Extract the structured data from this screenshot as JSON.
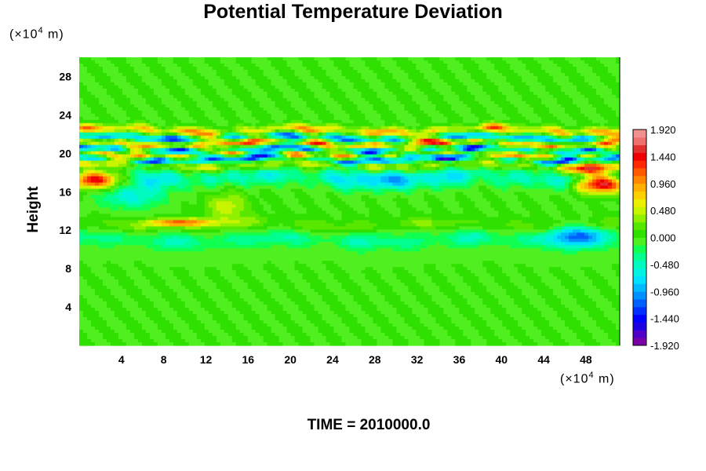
{
  "chart_data": {
    "type": "heatmap",
    "title": "Potential Temperature Deviation",
    "ylabel": "Height",
    "x_unit": [
      "(×10",
      "4",
      " m)"
    ],
    "y_unit": [
      "(×10",
      "4",
      " m)"
    ],
    "footer": "TIME = 2010000.0",
    "xlim": [
      0,
      51.2
    ],
    "ylim": [
      0,
      30
    ],
    "x_ticks": [
      "4",
      "8",
      "12",
      "16",
      "20",
      "24",
      "28",
      "32",
      "36",
      "40",
      "44",
      "48"
    ],
    "y_ticks": [
      "4",
      "8",
      "12",
      "16",
      "20",
      "24",
      "28"
    ],
    "colorbar": {
      "labels": [
        "1.920",
        "1.440",
        "0.960",
        "0.480",
        "0.000",
        "-0.480",
        "-0.960",
        "-1.440",
        "-1.920"
      ],
      "range": [
        -1.92,
        1.92
      ],
      "colors": [
        "#7a00a8",
        "#5000c8",
        "#1c00e0",
        "#0000ff",
        "#0030ff",
        "#0060ff",
        "#0090ff",
        "#00bcff",
        "#00e0ff",
        "#00f2e0",
        "#00fac0",
        "#00ff90",
        "#10ff50",
        "#50f020",
        "#30e000",
        "#58e800",
        "#90f000",
        "#c8f400",
        "#ecf000",
        "#fcd000",
        "#ffb000",
        "#ff8800",
        "#ff5a00",
        "#ff2800",
        "#f00000",
        "#e03030",
        "#f07070",
        "#f09090"
      ]
    },
    "field_description": "Background near 0.000 (green); strong alternating positive/negative bands near height 19-22; cyan/negative patches near 16-18 and 10-12; positive red patches at x<4 and x>46 near height 16-18.",
    "background_value": 0.0,
    "features": [
      {
        "kind": "band",
        "y": 22.3,
        "amplitude": 1.2,
        "width": 0.5,
        "phase": 0.3
      },
      {
        "kind": "band",
        "y": 21.6,
        "amplitude": -1.6,
        "width": 0.45,
        "phase": 1.1
      },
      {
        "kind": "band",
        "y": 21.0,
        "amplitude": 1.9,
        "width": 0.45,
        "phase": 2.0
      },
      {
        "kind": "band",
        "y": 20.4,
        "amplitude": -2.0,
        "width": 0.4,
        "phase": 0.7
      },
      {
        "kind": "band",
        "y": 19.9,
        "amplitude": 1.5,
        "width": 0.4,
        "phase": 2.6
      },
      {
        "kind": "band",
        "y": 19.4,
        "amplitude": -1.9,
        "width": 0.35,
        "phase": 1.6
      },
      {
        "kind": "band",
        "y": 18.8,
        "amplitude": 0.8,
        "width": 0.5,
        "phase": 0.2
      },
      {
        "kind": "band",
        "y": 17.5,
        "amplitude": -0.7,
        "width": 1.0,
        "phase": 1.4
      },
      {
        "kind": "band",
        "y": 11.0,
        "amplitude": -0.5,
        "width": 1.0,
        "phase": 0.9
      },
      {
        "kind": "band",
        "y": 12.5,
        "amplitude": 0.35,
        "width": 0.7,
        "phase": 2.2
      },
      {
        "kind": "blob",
        "x": 1.5,
        "y": 17.3,
        "rx": 2.2,
        "ry": 0.9,
        "amp": 1.9
      },
      {
        "kind": "blob",
        "x": 49.5,
        "y": 16.8,
        "rx": 2.5,
        "ry": 0.9,
        "amp": 1.7
      },
      {
        "kind": "blob",
        "x": 48.0,
        "y": 18.3,
        "rx": 2.0,
        "ry": 0.6,
        "amp": 1.2
      },
      {
        "kind": "blob",
        "x": 9.5,
        "y": 12.8,
        "rx": 3.0,
        "ry": 0.4,
        "amp": 1.1
      },
      {
        "kind": "blob",
        "x": 47.0,
        "y": 11.5,
        "rx": 3.0,
        "ry": 1.0,
        "amp": -0.9
      },
      {
        "kind": "blob",
        "x": 5.0,
        "y": 15.5,
        "rx": 3.0,
        "ry": 1.2,
        "amp": -0.6
      },
      {
        "kind": "blob",
        "x": 14.0,
        "y": 14.5,
        "rx": 2.0,
        "ry": 1.5,
        "amp": 0.5
      },
      {
        "kind": "blob",
        "x": 30.0,
        "y": 17.2,
        "rx": 4.0,
        "ry": 1.0,
        "amp": -0.5
      }
    ]
  }
}
